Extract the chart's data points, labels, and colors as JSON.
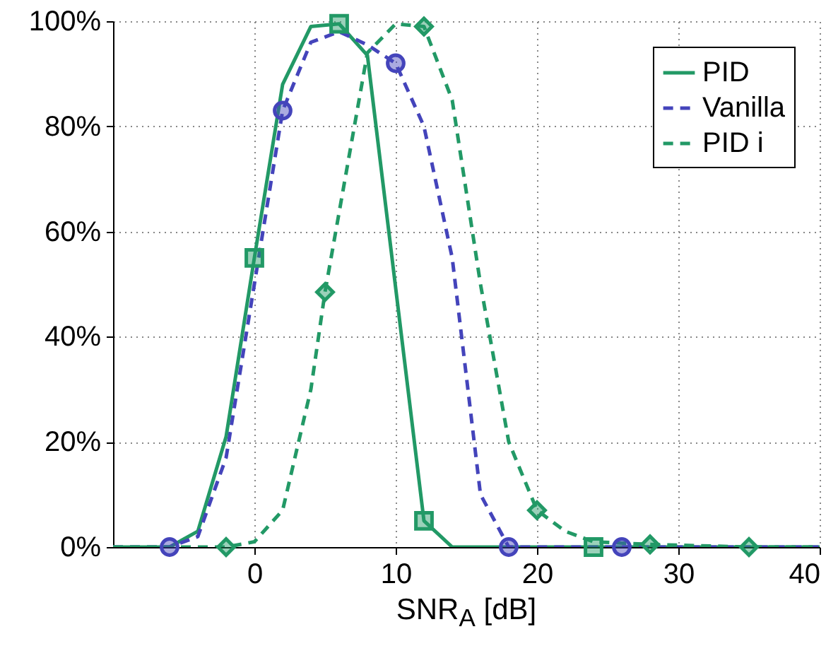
{
  "chart_data": {
    "type": "line",
    "xlabel": "SNR$_{A}$ [dB]",
    "xlim": [
      -10,
      40
    ],
    "xticks": [
      0,
      10,
      20,
      30,
      40
    ],
    "ylim": [
      0,
      100
    ],
    "yticks": [
      {
        "value": 0,
        "label": "0%"
      },
      {
        "value": 20,
        "label": "20%"
      },
      {
        "value": 40,
        "label": "40%"
      },
      {
        "value": 60,
        "label": "60%"
      },
      {
        "value": 80,
        "label": "80%"
      },
      {
        "value": 100,
        "label": "100%"
      }
    ],
    "grid": true,
    "legend": "top right",
    "series": [
      {
        "name": "PID",
        "color": "#229966",
        "line_style": "solid",
        "x": [
          -10,
          -6,
          -4,
          -2,
          0,
          2,
          4,
          6,
          8,
          12,
          14,
          24,
          40
        ],
        "values": [
          0,
          0,
          3,
          21,
          55,
          88,
          99,
          99.5,
          93.5,
          5,
          0,
          0,
          0
        ]
      },
      {
        "name": "Vanilla",
        "color": "#4444bb",
        "line_style": "dashed",
        "x": [
          -10,
          -6,
          -4,
          -2,
          0,
          2,
          4,
          6,
          8,
          10,
          12,
          14,
          16,
          18,
          40
        ],
        "values": [
          0,
          0,
          2,
          17,
          50,
          83,
          96,
          98,
          95.5,
          92,
          80,
          55,
          10,
          0,
          0
        ]
      },
      {
        "name": "PID i",
        "color": "#229966",
        "line_style": "dashed",
        "x": [
          -10,
          -2,
          0,
          2,
          4,
          5,
          8,
          10,
          12,
          14,
          16,
          18,
          20,
          22,
          24,
          28,
          35,
          40
        ],
        "values": [
          0,
          0,
          1,
          7,
          30,
          48.5,
          94,
          99.5,
          99,
          85,
          50,
          20,
          7,
          3,
          1,
          0.5,
          0,
          0
        ]
      },
      {
        "type": "scatter",
        "color": "#229966",
        "marker": "square",
        "x": [
          0,
          6,
          12,
          24
        ],
        "values": [
          55,
          99.5,
          5,
          0
        ]
      },
      {
        "type": "scatter",
        "color": "#4444bb",
        "marker": "circle",
        "x": [
          -6,
          2,
          10,
          18,
          26
        ],
        "values": [
          0,
          83,
          92,
          0,
          0
        ]
      },
      {
        "type": "scatter",
        "color": "#229966",
        "marker": "diamond",
        "x": [
          -2,
          5,
          12,
          20,
          28,
          35
        ],
        "values": [
          0,
          48.5,
          99,
          7,
          0.5,
          0
        ]
      }
    ]
  }
}
